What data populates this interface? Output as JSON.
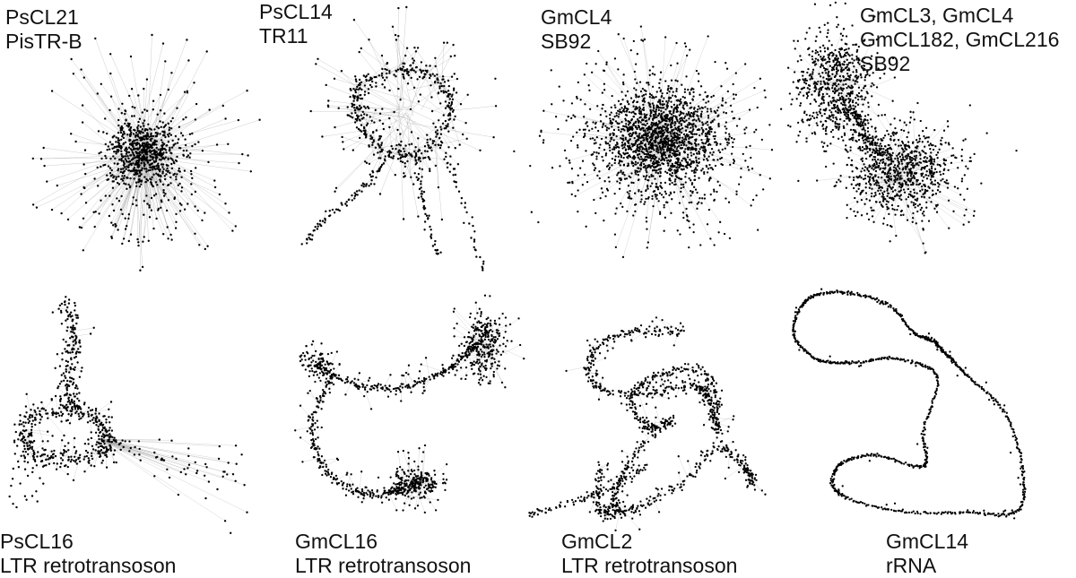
{
  "panels": [
    {
      "id": "p1",
      "lines": [
        "PsCL21",
        "PisTR-B"
      ]
    },
    {
      "id": "p2",
      "lines": [
        "PsCL14",
        "TR11"
      ]
    },
    {
      "id": "p3",
      "lines": [
        "GmCL4",
        "SB92"
      ]
    },
    {
      "id": "p4",
      "lines": [
        "GmCL3, GmCL4",
        "GmCL182, GmCL216",
        "SB92"
      ]
    },
    {
      "id": "p5",
      "lines": [
        "PsCL16",
        "LTR retrotransoson"
      ]
    },
    {
      "id": "p6",
      "lines": [
        "GmCL16",
        "LTR retrotransoson"
      ]
    },
    {
      "id": "p7",
      "lines": [
        "GmCL2",
        "LTR retrotransoson"
      ]
    },
    {
      "id": "p8",
      "lines": [
        "GmCL14",
        "rRNA"
      ]
    }
  ],
  "colors": {
    "node": "#000000",
    "edge": "#9a9a9a",
    "background": "#ffffff"
  }
}
